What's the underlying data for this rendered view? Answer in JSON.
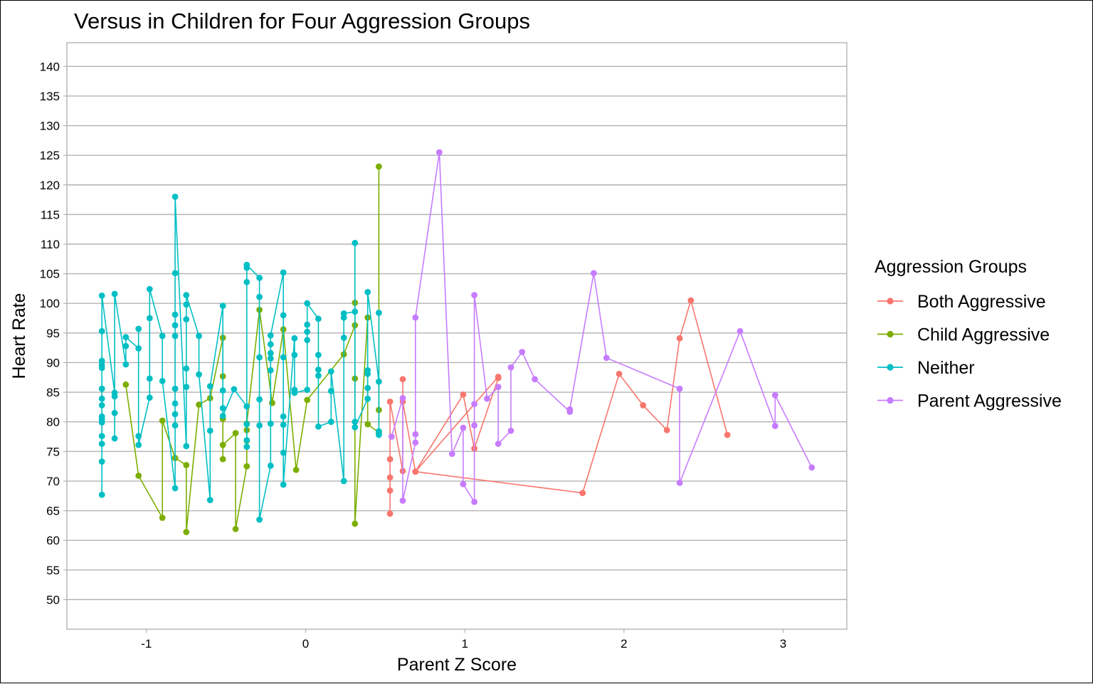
{
  "chart_data": {
    "type": "line",
    "title": "Versus  in Children for Four Aggression Groups",
    "xlabel": "Parent Z Score",
    "ylabel": "Heart Rate",
    "xlim": [
      -1.5,
      3.4
    ],
    "ylim": [
      45,
      144
    ],
    "x_ticks": [
      -1,
      0,
      1,
      2,
      3
    ],
    "y_ticks": [
      50,
      55,
      60,
      65,
      70,
      75,
      80,
      85,
      90,
      95,
      100,
      105,
      110,
      115,
      120,
      125,
      130,
      135,
      140
    ],
    "grid": "horizontal",
    "legend": {
      "title": "Aggression Groups",
      "placement": "right",
      "entries": [
        "Both Aggressive",
        "Child Aggressive",
        "Neither",
        "Parent Aggressive"
      ]
    },
    "series": [
      {
        "name": "Both Aggressive",
        "color": "#F8766D",
        "points": [
          [
            0.53,
            64.5
          ],
          [
            0.53,
            68.4
          ],
          [
            0.53,
            70.6
          ],
          [
            0.53,
            73.7
          ],
          [
            0.53,
            83.4
          ],
          [
            0.61,
            71.7
          ],
          [
            0.61,
            87.2
          ],
          [
            0.61,
            83.4
          ],
          [
            0.69,
            71.6
          ],
          [
            0.99,
            84.6
          ],
          [
            1.06,
            75.5
          ],
          [
            1.21,
            87.4
          ],
          [
            1.21,
            87.6
          ],
          [
            0.69,
            71.6
          ],
          [
            1.74,
            68.0
          ],
          [
            1.97,
            88.1
          ],
          [
            2.12,
            82.8
          ],
          [
            2.27,
            78.6
          ],
          [
            2.35,
            94.1
          ],
          [
            2.42,
            100.5
          ],
          [
            2.65,
            77.8
          ]
        ]
      },
      {
        "name": "Child Aggressive",
        "color": "#7CAE00",
        "points": [
          [
            -1.13,
            86.3
          ],
          [
            -1.05,
            70.9
          ],
          [
            -0.9,
            63.8
          ],
          [
            -0.9,
            80.2
          ],
          [
            -0.82,
            73.9
          ],
          [
            -0.75,
            72.7
          ],
          [
            -0.75,
            61.4
          ],
          [
            -0.67,
            82.9
          ],
          [
            -0.6,
            84.0
          ],
          [
            -0.52,
            94.2
          ],
          [
            -0.52,
            87.7
          ],
          [
            -0.52,
            80.5
          ],
          [
            -0.52,
            73.7
          ],
          [
            -0.52,
            76.1
          ],
          [
            -0.44,
            78.1
          ],
          [
            -0.44,
            61.9
          ],
          [
            -0.37,
            72.5
          ],
          [
            -0.37,
            76.8
          ],
          [
            -0.37,
            78.6
          ],
          [
            -0.37,
            79.7
          ],
          [
            -0.29,
            98.9
          ],
          [
            -0.21,
            83.2
          ],
          [
            -0.14,
            95.6
          ],
          [
            -0.06,
            71.9
          ],
          [
            0.01,
            83.7
          ],
          [
            0.24,
            91.4
          ],
          [
            0.31,
            96.3
          ],
          [
            0.31,
            100.1
          ],
          [
            0.31,
            87.3
          ],
          [
            0.31,
            62.8
          ],
          [
            0.39,
            97.6
          ],
          [
            0.39,
            79.6
          ],
          [
            0.46,
            78.2
          ],
          [
            0.46,
            82.0
          ],
          [
            0.46,
            123.1
          ]
        ]
      },
      {
        "name": "Neither",
        "color": "#00BFC4",
        "points": [
          [
            -1.28,
            67.7
          ],
          [
            -1.28,
            73.3
          ],
          [
            -1.28,
            76.3
          ],
          [
            -1.28,
            77.6
          ],
          [
            -1.28,
            79.9
          ],
          [
            -1.28,
            80.4
          ],
          [
            -1.28,
            80.9
          ],
          [
            -1.28,
            82.8
          ],
          [
            -1.28,
            83.9
          ],
          [
            -1.28,
            85.6
          ],
          [
            -1.28,
            89.1
          ],
          [
            -1.28,
            89.6
          ],
          [
            -1.28,
            90.3
          ],
          [
            -1.28,
            95.3
          ],
          [
            -1.28,
            101.3
          ],
          [
            -1.2,
            84.9
          ],
          [
            -1.2,
            77.2
          ],
          [
            -1.2,
            81.5
          ],
          [
            -1.2,
            84.3
          ],
          [
            -1.2,
            101.6
          ],
          [
            -1.13,
            89.7
          ],
          [
            -1.13,
            92.8
          ],
          [
            -1.13,
            94.3
          ],
          [
            -1.05,
            92.4
          ],
          [
            -1.05,
            95.7
          ],
          [
            -1.05,
            77.6
          ],
          [
            -1.05,
            76.1
          ],
          [
            -0.98,
            84.1
          ],
          [
            -0.98,
            87.3
          ],
          [
            -0.98,
            97.5
          ],
          [
            -0.98,
            102.4
          ],
          [
            -0.9,
            94.5
          ],
          [
            -0.9,
            86.9
          ],
          [
            -0.82,
            68.8
          ],
          [
            -0.82,
            79.4
          ],
          [
            -0.82,
            81.3
          ],
          [
            -0.82,
            83.1
          ],
          [
            -0.82,
            85.6
          ],
          [
            -0.82,
            94.5
          ],
          [
            -0.82,
            96.3
          ],
          [
            -0.82,
            98.1
          ],
          [
            -0.82,
            105.1
          ],
          [
            -0.82,
            118.0
          ],
          [
            -0.75,
            75.9
          ],
          [
            -0.75,
            85.9
          ],
          [
            -0.75,
            89.0
          ],
          [
            -0.75,
            97.3
          ],
          [
            -0.75,
            99.8
          ],
          [
            -0.75,
            101.4
          ],
          [
            -0.67,
            94.5
          ],
          [
            -0.67,
            88.0
          ],
          [
            -0.6,
            66.8
          ],
          [
            -0.6,
            78.5
          ],
          [
            -0.6,
            86.0
          ],
          [
            -0.52,
            99.6
          ],
          [
            -0.52,
            85.3
          ],
          [
            -0.52,
            82.3
          ],
          [
            -0.52,
            81.0
          ],
          [
            -0.45,
            85.5
          ],
          [
            -0.37,
            82.6
          ],
          [
            -0.37,
            76.9
          ],
          [
            -0.37,
            75.8
          ],
          [
            -0.37,
            79.6
          ],
          [
            -0.37,
            103.6
          ],
          [
            -0.37,
            106.0
          ],
          [
            -0.37,
            106.5
          ],
          [
            -0.29,
            104.3
          ],
          [
            -0.29,
            101.1
          ],
          [
            -0.29,
            90.9
          ],
          [
            -0.29,
            83.8
          ],
          [
            -0.29,
            79.4
          ],
          [
            -0.29,
            63.5
          ],
          [
            -0.22,
            72.6
          ],
          [
            -0.22,
            79.7
          ],
          [
            -0.22,
            88.7
          ],
          [
            -0.22,
            90.7
          ],
          [
            -0.22,
            91.6
          ],
          [
            -0.22,
            93.1
          ],
          [
            -0.22,
            94.6
          ],
          [
            -0.14,
            105.2
          ],
          [
            -0.14,
            98.0
          ],
          [
            -0.14,
            90.9
          ],
          [
            -0.14,
            80.9
          ],
          [
            -0.14,
            79.5
          ],
          [
            -0.14,
            74.8
          ],
          [
            -0.14,
            69.4
          ],
          [
            -0.07,
            94.1
          ],
          [
            -0.07,
            91.3
          ],
          [
            -0.07,
            85.4
          ],
          [
            -0.07,
            84.9
          ],
          [
            0.01,
            85.4
          ],
          [
            0.01,
            93.8
          ],
          [
            0.01,
            95.2
          ],
          [
            0.01,
            96.4
          ],
          [
            0.01,
            100.0
          ],
          [
            0.08,
            97.4
          ],
          [
            0.08,
            91.3
          ],
          [
            0.08,
            88.8
          ],
          [
            0.08,
            87.8
          ],
          [
            0.08,
            79.2
          ],
          [
            0.16,
            80.0
          ],
          [
            0.16,
            85.2
          ],
          [
            0.16,
            88.5
          ],
          [
            0.24,
            70.0
          ],
          [
            0.24,
            94.2
          ],
          [
            0.24,
            97.6
          ],
          [
            0.24,
            98.3
          ],
          [
            0.31,
            98.6
          ],
          [
            0.31,
            110.2
          ],
          [
            0.31,
            80.0
          ],
          [
            0.31,
            79.1
          ],
          [
            0.39,
            83.9
          ],
          [
            0.39,
            85.7
          ],
          [
            0.39,
            88.1
          ],
          [
            0.39,
            88.7
          ],
          [
            0.39,
            101.9
          ],
          [
            0.46,
            86.8
          ],
          [
            0.46,
            98.4
          ],
          [
            0.46,
            77.8
          ],
          [
            0.46,
            78.4
          ]
        ]
      },
      {
        "name": "Parent Aggressive",
        "color": "#C77CFF",
        "points": [
          [
            0.54,
            77.5
          ],
          [
            0.61,
            84.0
          ],
          [
            0.61,
            66.7
          ],
          [
            0.69,
            76.5
          ],
          [
            0.69,
            77.9
          ],
          [
            0.69,
            97.6
          ],
          [
            0.84,
            125.5
          ],
          [
            0.92,
            74.6
          ],
          [
            0.99,
            79.0
          ],
          [
            0.99,
            69.5
          ],
          [
            1.06,
            66.5
          ],
          [
            1.06,
            79.4
          ],
          [
            1.06,
            83.0
          ],
          [
            1.06,
            101.4
          ],
          [
            1.14,
            83.9
          ],
          [
            1.21,
            85.9
          ],
          [
            1.21,
            76.3
          ],
          [
            1.29,
            78.5
          ],
          [
            1.29,
            89.2
          ],
          [
            1.36,
            91.8
          ],
          [
            1.44,
            87.2
          ],
          [
            1.66,
            81.7
          ],
          [
            1.66,
            82.1
          ],
          [
            1.81,
            105.1
          ],
          [
            1.89,
            90.8
          ],
          [
            2.35,
            85.6
          ],
          [
            2.35,
            69.7
          ],
          [
            2.73,
            95.3
          ],
          [
            2.95,
            79.3
          ],
          [
            2.95,
            84.5
          ],
          [
            3.18,
            72.3
          ]
        ]
      }
    ]
  }
}
